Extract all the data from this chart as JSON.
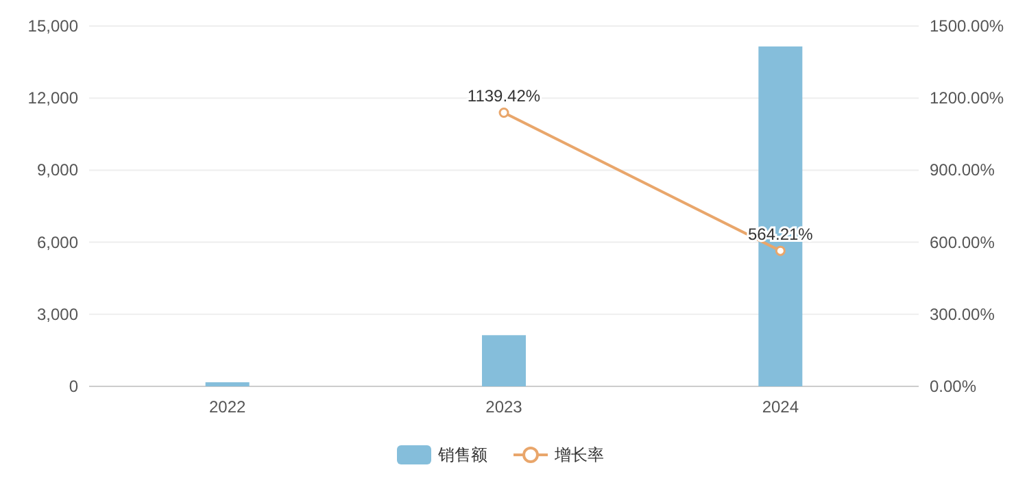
{
  "chart_data": {
    "type": "bar",
    "categories": [
      "2022",
      "2023",
      "2024"
    ],
    "series": [
      {
        "name": "销售额",
        "color": "#85bedb",
        "values": [
          170,
          2130,
          14150
        ]
      },
      {
        "name": "增长率",
        "type": "line",
        "axis": "y2",
        "color": "#e9a66b",
        "values": [
          null,
          1139.42,
          564.21
        ],
        "value_labels": [
          null,
          "1139.42%",
          "564.21%"
        ]
      }
    ],
    "ylim": [
      0,
      15000
    ],
    "yticks": [
      {
        "value": 0,
        "label": "0"
      },
      {
        "value": 3000,
        "label": "3,000"
      },
      {
        "value": 6000,
        "label": "6,000"
      },
      {
        "value": 9000,
        "label": "9,000"
      },
      {
        "value": 12000,
        "label": "12,000"
      },
      {
        "value": 15000,
        "label": "15,000"
      }
    ],
    "y2lim": [
      0,
      1500
    ],
    "y2ticks": [
      {
        "value": 0,
        "label": "0.00%"
      },
      {
        "value": 300,
        "label": "300.00%"
      },
      {
        "value": 600,
        "label": "600.00%"
      },
      {
        "value": 900,
        "label": "900.00%"
      },
      {
        "value": 1200,
        "label": "1200.00%"
      },
      {
        "value": 1500,
        "label": "1500.00%"
      }
    ],
    "grid": "y",
    "legend": "bottom",
    "marker": "circle"
  }
}
